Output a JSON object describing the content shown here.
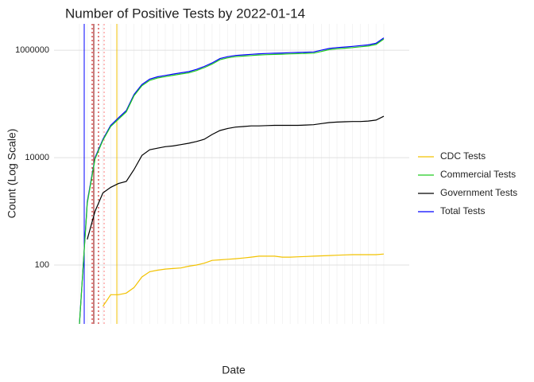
{
  "chart_data": {
    "type": "line",
    "title": "Number of Positive Tests by  2022-01-14",
    "x_label": "Date",
    "y_label": "Count (Log Scale)",
    "log_scale": true,
    "grid": true,
    "categories": [
      null,
      null,
      null,
      null,
      null,
      null,
      null,
      null,
      null,
      null,
      null,
      null,
      null,
      null,
      null,
      null,
      null,
      null,
      null,
      null,
      null,
      null,
      null,
      null,
      null,
      null,
      null,
      null,
      null,
      null,
      null,
      null,
      null,
      null,
      null,
      null,
      null,
      null,
      null,
      null
    ],
    "ylim": [
      8,
      3100000
    ],
    "yticks": [
      100,
      10000,
      1000000
    ],
    "series": [
      {
        "name": "CDC Tests",
        "color": "#f2c200",
        "values": [
          null,
          null,
          null,
          17,
          28,
          28,
          30,
          38,
          60,
          75,
          80,
          84,
          86,
          88,
          95,
          100,
          108,
          122,
          125,
          128,
          131,
          135,
          140,
          146,
          146,
          146,
          140,
          140,
          142,
          144,
          146,
          148,
          150,
          152,
          154,
          156,
          156,
          156,
          156,
          160
        ]
      },
      {
        "name": "Commercial Tests",
        "color": "#22cc22",
        "values": [
          8,
          1400,
          9500,
          21000,
          38000,
          52000,
          71000,
          142000,
          218000,
          275000,
          304000,
          323000,
          342000,
          361000,
          380000,
          418000,
          475000,
          551000,
          665000,
          722000,
          760000,
          779000,
          798000,
          817000,
          826000,
          836000,
          845000,
          855000,
          864000,
          874000,
          883000,
          950000,
          1026000,
          1064000,
          1092000,
          1121000,
          1159000,
          1197000,
          1282000,
          1615000
        ]
      },
      {
        "name": "Government Tests",
        "color": "#000000",
        "values": [
          null,
          300,
          1000,
          2200,
          2800,
          3300,
          3600,
          6000,
          11000,
          14000,
          15000,
          16000,
          16500,
          17500,
          18500,
          20000,
          22000,
          27000,
          32000,
          35000,
          37000,
          38000,
          39000,
          39000,
          39500,
          40000,
          40000,
          40000,
          40000,
          40500,
          41000,
          43000,
          45000,
          46000,
          46500,
          47000,
          47000,
          48000,
          50000,
          59000
        ]
      },
      {
        "name": "Total Tests",
        "color": "#0000ff",
        "values": [
          8,
          1500,
          10000,
          22000,
          40000,
          55000,
          75000,
          150000,
          230000,
          290000,
          320000,
          340000,
          360000,
          380000,
          400000,
          440000,
          500000,
          580000,
          700000,
          760000,
          800000,
          820000,
          840000,
          860000,
          870000,
          880000,
          890000,
          900000,
          910000,
          920000,
          930000,
          1000000,
          1080000,
          1120000,
          1150000,
          1180000,
          1220000,
          1260000,
          1350000,
          1700000
        ]
      }
    ],
    "vlines": [
      {
        "x": 0.61,
        "color": "#0000ff",
        "dash": false
      },
      {
        "x": 1.63,
        "color": "#cc0000",
        "dash": true
      },
      {
        "x": 1.83,
        "color": "#8b0000",
        "dash": false
      },
      {
        "x": 2.44,
        "color": "#cc0000",
        "dash": true
      },
      {
        "x": 3.16,
        "color": "#ff8080",
        "dash": true
      },
      {
        "x": 4.79,
        "color": "#f2c200",
        "dash": false
      }
    ]
  }
}
